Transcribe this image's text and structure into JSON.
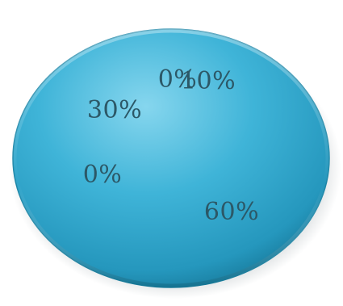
{
  "chart_data": {
    "type": "pie",
    "title": "",
    "slices": [
      {
        "label": "60%",
        "value": 60
      },
      {
        "label": "0%",
        "value": 0
      },
      {
        "label": "30%",
        "value": 30
      },
      {
        "label": "0%",
        "value": 0
      },
      {
        "label": "10%",
        "value": 10
      }
    ],
    "colors": {
      "fill": "#2aa3c8",
      "highlight": "#7fd3ec",
      "edge": "#136e8a",
      "shadow": "#8c9a9f",
      "label": "#2c5867"
    }
  }
}
